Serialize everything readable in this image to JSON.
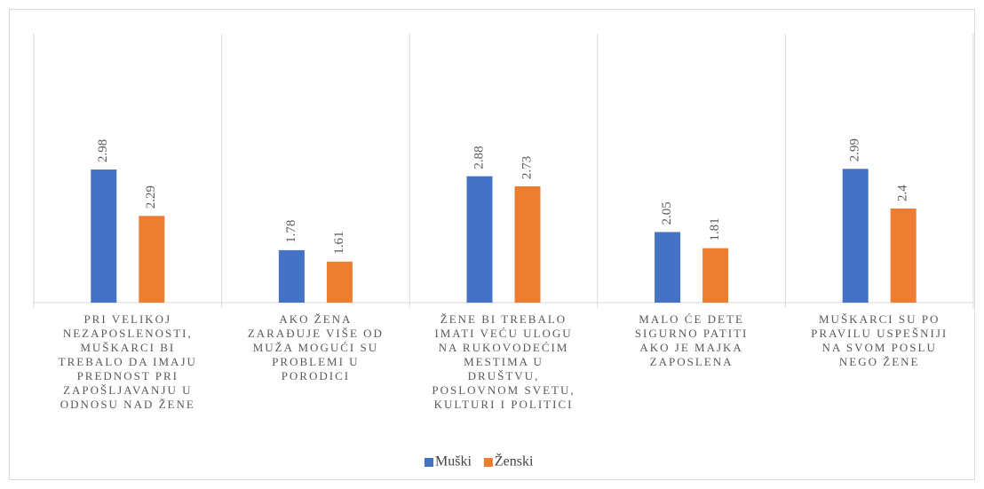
{
  "chart_data": {
    "type": "bar",
    "categories": [
      [
        "PRI VELIKOJ",
        "NEZAPOSLENOSTI,",
        "MUŠKARCI BI",
        "TREBALO DA IMAJU",
        "PREDNOST PRI",
        "ZAPOŠLJAVANJU U",
        "ODNOSU NAD ŽENE"
      ],
      [
        "AKO ŽENA",
        "ZARAĐUJE VIŠE OD",
        "MUŽA MOGUĆI SU",
        "PROBLEMI U",
        "PORODICI"
      ],
      [
        "ŽENE BI TREBALO",
        "IMATI VEĆU ULOGU",
        "NA RUKOVODEĆIM",
        "MESTIMA U",
        "DRUŠTVU,",
        "POSLOVNOM SVETU,",
        "KULTURI I POLITICI"
      ],
      [
        "MALO ĆE DETE",
        "SIGURNO PATITI",
        "AKO JE MAJKA",
        "ZAPOSLENA"
      ],
      [
        "MUŠKARCI SU PO",
        "PRAVILU USPEŠNIJI",
        "NA SVOM POSLU",
        "NEGO ŽENE"
      ]
    ],
    "series": [
      {
        "name": "Muški",
        "color": "#4472c4",
        "values": [
          2.98,
          1.78,
          2.88,
          2.05,
          2.99
        ]
      },
      {
        "name": "Ženski",
        "color": "#ed7d31",
        "values": [
          2.29,
          1.61,
          2.73,
          1.81,
          2.4
        ]
      }
    ],
    "ylim": [
      1,
      5
    ],
    "legend": "bottom"
  }
}
